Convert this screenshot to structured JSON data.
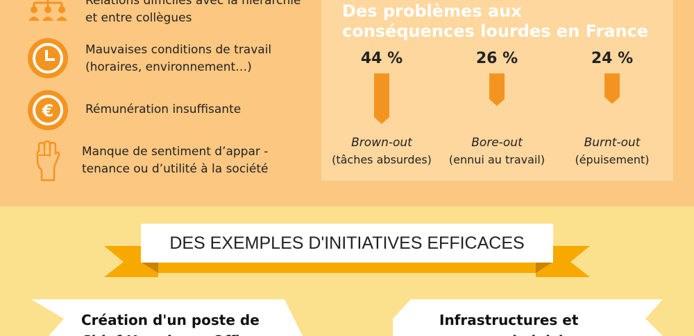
{
  "causes": [
    {
      "icon": "hierarchy-people-icon",
      "text": "Relations difficiles avec la hiérarchie\net entre collègues"
    },
    {
      "icon": "clock-icon",
      "text": "Mauvaises conditions de travail\n(horaires, environnement…)"
    },
    {
      "icon": "euro-icon",
      "text": "Rémunération insuffisante"
    },
    {
      "icon": "raised-fist-icon",
      "text": "Manque de sentiment d’appar -\ntenance ou d’utilité à la société"
    }
  ],
  "panel": {
    "title": "Des problèmes aux\nconséquences lourdes en France",
    "stats": [
      {
        "pct": "44 %",
        "value": 44,
        "label": "Brown-out",
        "sub": "(tâches absurdes)"
      },
      {
        "pct": "26 %",
        "value": 26,
        "label": "Bore-out",
        "sub": "(ennui au travail)"
      },
      {
        "pct": "24 %",
        "value": 24,
        "label": "Burnt-out",
        "sub": "(épuisement)"
      }
    ]
  },
  "banner": {
    "title": "DES EXEMPLES D'INITIATIVES EFFICACES"
  },
  "cards": [
    {
      "text": "Création d'un poste de\nChief Happiness Officer"
    },
    {
      "text": "Infrastructures et\nespaces de loisirs"
    }
  ],
  "colors": {
    "orange": "#f49420",
    "top_bg": "#fcc781",
    "panel_bg": "#fdd79e",
    "bottom_bg": "#fbe18d",
    "ribbon": "#f7a900"
  }
}
